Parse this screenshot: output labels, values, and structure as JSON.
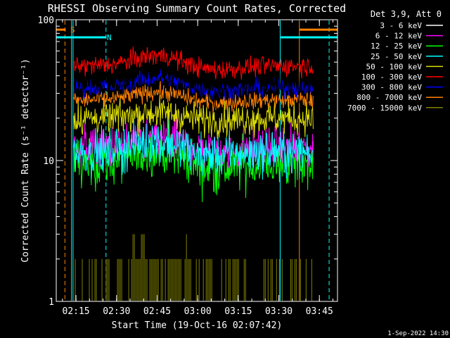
{
  "chart_data": {
    "type": "line",
    "title": "RHESSI Observing Summary Count Rates, Corrected",
    "xlabel": "Start Time (19-Oct-16 02:07:42)",
    "ylabel": "Corrected Count Rate (s⁻¹ detector⁻¹)",
    "yscale": "log",
    "ylim": [
      1,
      100
    ],
    "xlim_minutes": [
      0,
      104
    ],
    "y_ticks": [
      {
        "value": 1,
        "label": "1"
      },
      {
        "value": 10,
        "label": "10"
      },
      {
        "value": 100,
        "label": "100"
      }
    ],
    "x_ticks": [
      {
        "minute": 7.3,
        "label": "02:15"
      },
      {
        "minute": 22.3,
        "label": "02:30"
      },
      {
        "minute": 37.3,
        "label": "02:45"
      },
      {
        "minute": 52.3,
        "label": "03:00"
      },
      {
        "minute": 67.3,
        "label": "03:15"
      },
      {
        "minute": 82.3,
        "label": "03:30"
      },
      {
        "minute": 97.3,
        "label": "03:45"
      }
    ],
    "legend_title": "Det 3,9, Att 0",
    "series": [
      {
        "name": "3 - 6 keV",
        "color": "#000000",
        "baseline": 38,
        "bump": 1.22,
        "noise": 0.18
      },
      {
        "name": "6 - 12 keV",
        "color": "#ff00ff",
        "baseline": 12.5,
        "bump": 1.18,
        "noise": 0.16
      },
      {
        "name": "12 - 25 keV",
        "color": "#00ff00",
        "baseline": 9.5,
        "bump": 1.25,
        "noise": 0.2
      },
      {
        "name": "25 - 50 keV",
        "color": "#00ffff",
        "baseline": 11.5,
        "bump": 1.2,
        "noise": 0.17
      },
      {
        "name": "50 - 100 keV",
        "color": "#dddd00",
        "baseline": 20,
        "bump": 1.1,
        "noise": 0.13
      },
      {
        "name": "100 - 300 keV",
        "color": "#ff0000",
        "baseline": 47,
        "bump": 1.2,
        "noise": 0.08
      },
      {
        "name": "300 - 800 keV",
        "color": "#0000ff",
        "baseline": 33,
        "bump": 1.18,
        "noise": 0.07
      },
      {
        "name": "800 - 7000 keV",
        "color": "#ff8000",
        "baseline": 27,
        "bump": 1.15,
        "noise": 0.07
      },
      {
        "name": "7000 - 15000 keV",
        "color": "#808000",
        "baseline": 1.4,
        "bump": 1.0,
        "noise": 0.0
      }
    ],
    "data_start_minute": 6.5,
    "data_end_minute": 95,
    "annotations": [
      {
        "label": "S",
        "color": "#ff8000",
        "kind": "saa",
        "minute_start": 0,
        "minute_end": 3.5,
        "level": 85
      },
      {
        "label": "N",
        "color": "#00ffff",
        "kind": "night",
        "minute_start": 0,
        "minute_end": 18.5,
        "level": 75
      },
      {
        "label": "",
        "color": "#ff8000",
        "kind": "saa",
        "minute_start": 90,
        "minute_end": 104,
        "level": 85
      },
      {
        "label": "",
        "color": "#00ffff",
        "kind": "night",
        "minute_start": 83,
        "minute_end": 104,
        "level": 75
      }
    ],
    "vertical_lines": [
      {
        "minute": 3.2,
        "color": "#ff8000",
        "style": "dashed"
      },
      {
        "minute": 5.6,
        "color": "#ff8000",
        "style": "solid"
      },
      {
        "minute": 6.2,
        "color": "#00ffff",
        "style": "solid"
      },
      {
        "minute": 18.4,
        "color": "#00ffff",
        "style": "dashed"
      },
      {
        "minute": 82.8,
        "color": "#00ffff",
        "style": "solid"
      },
      {
        "minute": 89.9,
        "color": "#ff8000",
        "style": "solid"
      },
      {
        "minute": 100.9,
        "color": "#00ffff",
        "style": "dashed"
      }
    ]
  },
  "footer": {
    "date": "1-Sep-2022 14:30"
  }
}
